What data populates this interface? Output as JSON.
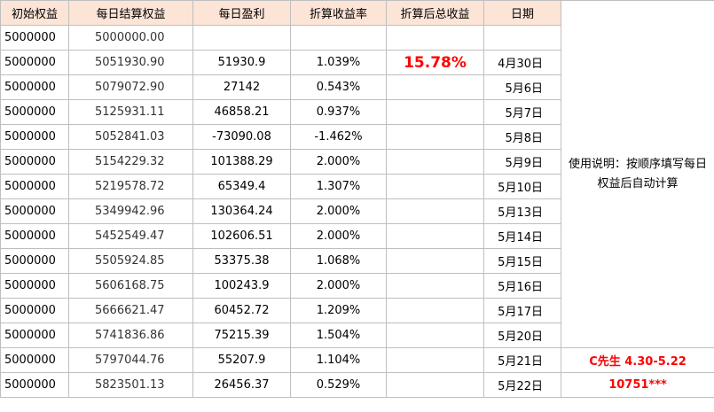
{
  "table": {
    "header": [
      "初始权益",
      "每日结算权益",
      "每日盈利",
      "折算收益率",
      "折算后总收益",
      "日期"
    ],
    "rows": [
      {
        "initial": "5000000",
        "equity": "5000000.00"
      },
      {
        "initial": "5000000",
        "equity": "5051930.90",
        "profit": "51930.9",
        "rate": "1.039%",
        "total": "15.78%",
        "date": "4月30日"
      },
      {
        "initial": "5000000",
        "equity": "5079072.90",
        "profit": "27142",
        "rate": "0.543%",
        "date": "5月6日"
      },
      {
        "initial": "5000000",
        "equity": "5125931.11",
        "profit": "46858.21",
        "rate": "0.937%",
        "date": "5月7日"
      },
      {
        "initial": "5000000",
        "equity": "5052841.03",
        "profit": "-73090.08",
        "rate": "-1.462%",
        "date": "5月8日"
      },
      {
        "initial": "5000000",
        "equity": "5154229.32",
        "profit": "101388.29",
        "rate": "2.000%",
        "date": "5月9日"
      },
      {
        "initial": "5000000",
        "equity": "5219578.72",
        "profit": "65349.4",
        "rate": "1.307%",
        "date": "5月10日"
      },
      {
        "initial": "5000000",
        "equity": "5349942.96",
        "profit": "130364.24",
        "rate": "2.000%",
        "date": "5月13日"
      },
      {
        "initial": "5000000",
        "equity": "5452549.47",
        "profit": "102606.51",
        "rate": "2.000%",
        "date": "5月14日"
      },
      {
        "initial": "5000000",
        "equity": "5505924.85",
        "profit": "53375.38",
        "rate": "1.068%",
        "date": "5月15日"
      },
      {
        "initial": "5000000",
        "equity": "5606168.75",
        "profit": "100243.9",
        "rate": "2.000%",
        "date": "5月16日"
      },
      {
        "initial": "5000000",
        "equity": "5666621.47",
        "profit": "60452.72",
        "rate": "1.209%",
        "date": "5月17日"
      },
      {
        "initial": "5000000",
        "equity": "5741836.86",
        "profit": "75215.39",
        "rate": "1.504%",
        "date": "5月20日"
      },
      {
        "initial": "5000000",
        "equity": "5797044.76",
        "profit": "55207.9",
        "rate": "1.104%",
        "date": "5月21日"
      },
      {
        "initial": "5000000",
        "equity": "5823501.13",
        "profit": "26456.37",
        "rate": "0.529%",
        "date": "5月22日"
      }
    ],
    "note": "使用说明：按顺序填写每日权益后自动计算",
    "footer": [
      "C先生 4.30-5.22",
      "10751***"
    ]
  }
}
